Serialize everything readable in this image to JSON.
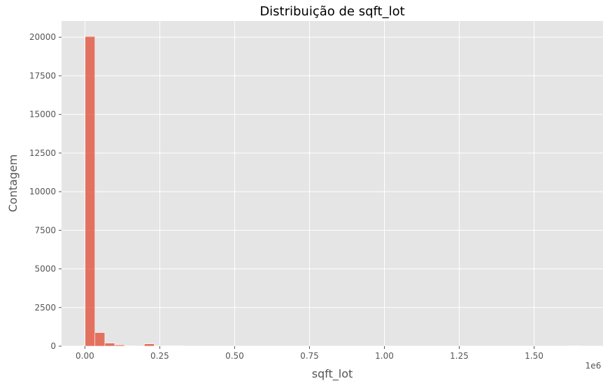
{
  "chart_data": {
    "type": "bar",
    "title": "Distribuição de sqft_lot",
    "xlabel": "sqft_lot",
    "ylabel": "Contagem",
    "x_offset_label": "1e6",
    "bin_width": 32992,
    "x_start": 520,
    "values": [
      20050,
      880,
      200,
      80,
      20,
      0,
      150,
      30,
      10,
      5,
      0,
      0,
      0,
      0,
      0,
      0,
      0,
      0,
      0,
      0,
      0,
      0,
      0,
      0,
      0,
      0,
      0,
      0,
      0,
      0,
      0,
      0,
      0,
      0,
      0,
      0,
      0,
      0,
      0,
      0,
      0,
      0,
      0,
      0,
      0,
      0,
      0,
      0,
      0,
      1
    ],
    "xlim": [
      -78000,
      1730000
    ],
    "ylim": [
      0,
      21050
    ],
    "xticks": [
      0,
      250000,
      500000,
      750000,
      1000000,
      1250000,
      1500000
    ],
    "xtick_labels": [
      "0.00",
      "0.25",
      "0.50",
      "0.75",
      "1.00",
      "1.25",
      "1.50"
    ],
    "yticks": [
      0,
      2500,
      5000,
      7500,
      10000,
      12500,
      15000,
      17500,
      20000
    ],
    "ytick_labels": [
      "0",
      "2500",
      "5000",
      "7500",
      "10000",
      "12500",
      "15000",
      "17500",
      "20000"
    ],
    "grid": true,
    "bar_color": "#E24A33",
    "background_color": "#E5E5E5"
  }
}
